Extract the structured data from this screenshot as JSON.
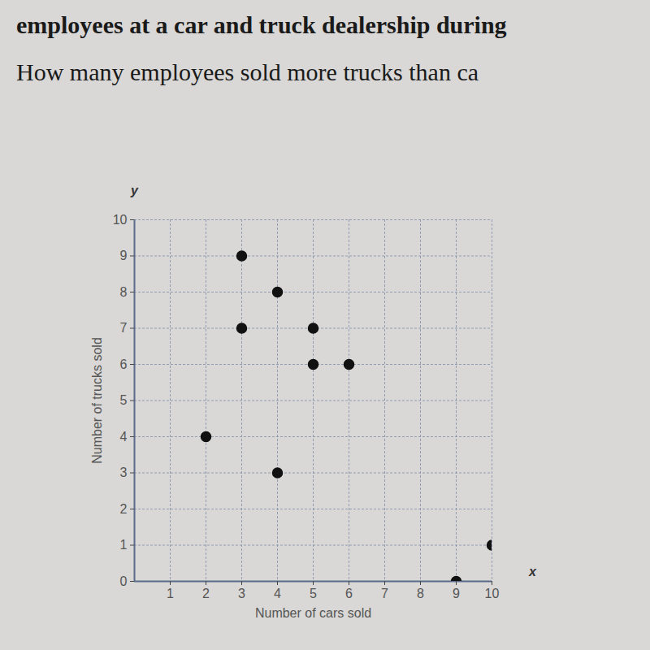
{
  "chart_data": {
    "type": "scatter",
    "title": "employees at a car and truck dealership during",
    "subtitle": "How many employees sold more trucks than ca",
    "x_label": "Number of cars sold",
    "y_label": "Number of trucks sold",
    "annotations": [
      "y",
      "x"
    ],
    "x": [
      2,
      3,
      3,
      4,
      4,
      5,
      5,
      6,
      9,
      10
    ],
    "values": [
      4,
      9,
      7,
      8,
      3,
      7,
      6,
      6,
      0,
      1
    ],
    "color": "#111111",
    "marker": "circle",
    "xlim": [
      0,
      10
    ],
    "ylim": [
      0,
      10
    ],
    "xticks": [
      1,
      2,
      3,
      4,
      5,
      6,
      7,
      8,
      9,
      10
    ],
    "yticks": [
      0,
      1,
      2,
      3,
      4,
      5,
      6,
      7,
      8,
      9,
      10
    ],
    "grid": true
  }
}
